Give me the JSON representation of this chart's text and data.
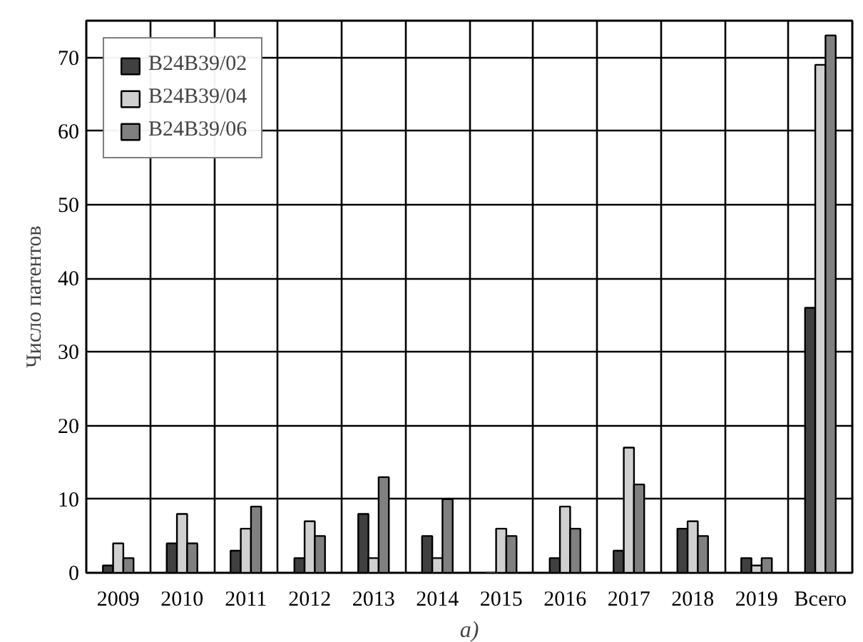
{
  "chart_data": {
    "type": "bar",
    "ylabel": "Число патентов",
    "annotations": [
      "а)"
    ],
    "categories": [
      "2009",
      "2010",
      "2011",
      "2012",
      "2013",
      "2014",
      "2015",
      "2016",
      "2017",
      "2018",
      "2019",
      "Всего"
    ],
    "series": [
      {
        "name": "B24B39/02",
        "color": "#404040",
        "values": [
          1,
          4,
          3,
          2,
          8,
          5,
          0,
          2,
          3,
          6,
          2,
          36
        ]
      },
      {
        "name": "B24B39/04",
        "color": "#d0d0d0",
        "values": [
          4,
          8,
          6,
          7,
          2,
          2,
          6,
          9,
          17,
          7,
          1,
          69
        ]
      },
      {
        "name": "B24B39/06",
        "color": "#808080",
        "values": [
          2,
          4,
          9,
          5,
          13,
          10,
          5,
          6,
          12,
          5,
          2,
          73
        ]
      }
    ],
    "ylim": [
      0,
      75
    ],
    "yticks": [
      0,
      10,
      20,
      30,
      40,
      50,
      60,
      70
    ],
    "grid": true,
    "legend": "top left"
  }
}
